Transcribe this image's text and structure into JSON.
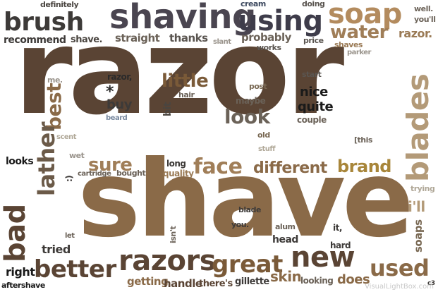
{
  "words": [
    {
      "id": "razor",
      "text": "razor",
      "color": "#5a4434"
    },
    {
      "id": "shave",
      "text": "shave",
      "color": "#8a6a48"
    },
    {
      "id": "brush",
      "text": "brush",
      "color": "#3d3a38"
    },
    {
      "id": "shaving",
      "text": "shaving",
      "color": "#4a4550"
    },
    {
      "id": "using",
      "text": "using",
      "color": "#3e3c4a"
    },
    {
      "id": "soap",
      "text": "soap",
      "color": "#b38b5e"
    },
    {
      "id": "water",
      "text": "water",
      "color": "#a07e58"
    },
    {
      "id": "razor-dot",
      "text": "razor.",
      "color": "#9a7a55"
    },
    {
      "id": "well",
      "text": "well.",
      "color": "#6b6258"
    },
    {
      "id": "youll",
      "text": "you'll",
      "color": "#6b6258"
    },
    {
      "id": "definitely",
      "text": "definitely",
      "color": "#4a4540"
    },
    {
      "id": "cream",
      "text": "cream",
      "color": "#3e4a60"
    },
    {
      "id": "doing",
      "text": "doing",
      "color": "#5a5550"
    },
    {
      "id": "recommend",
      "text": "recommend",
      "color": "#3d3a38"
    },
    {
      "id": "shave-dot",
      "text": "shave.",
      "color": "#4a4540"
    },
    {
      "id": "straight",
      "text": "straight",
      "color": "#6b6258"
    },
    {
      "id": "thanks",
      "text": "thanks",
      "color": "#5a5550"
    },
    {
      "id": "slant",
      "text": "slant",
      "color": "#9a948c"
    },
    {
      "id": "probably",
      "text": "probably",
      "color": "#6b6258"
    },
    {
      "id": "works",
      "text": "works",
      "color": "#5a5550"
    },
    {
      "id": "price",
      "text": "price",
      "color": "#5a5550"
    },
    {
      "id": "shaves",
      "text": "shaves",
      "color": "#9a7a55"
    },
    {
      "id": "parker",
      "text": "parker",
      "color": "#9a948c"
    },
    {
      "id": "me",
      "text": "me.",
      "color": "#9a948c"
    },
    {
      "id": "razor-comma",
      "text": "razor,",
      "color": "#2a2a2a"
    },
    {
      "id": "post",
      "text": "post",
      "color": "#7a6a55"
    },
    {
      "id": "start",
      "text": "start",
      "color": "#5a5550"
    },
    {
      "id": "little",
      "text": "little",
      "color": "#7a5a38"
    },
    {
      "id": "hair",
      "text": "hair",
      "color": "#6b6258"
    },
    {
      "id": "best",
      "text": "best",
      "color": "#8a6a48"
    },
    {
      "id": "asterisk",
      "text": "*",
      "color": "#2a2a2a"
    },
    {
      "id": "buy",
      "text": "buy",
      "color": "#3d3a38"
    },
    {
      "id": "beard",
      "text": "beard",
      "color": "#7a8aa0"
    },
    {
      "id": "bit",
      "text": "bit",
      "color": "#4a4540"
    },
    {
      "id": "maybe",
      "text": "maybe",
      "color": "#6b6258"
    },
    {
      "id": "look",
      "text": "look",
      "color": "#6b6258"
    },
    {
      "id": "nice",
      "text": "nice",
      "color": "#1a1a1a"
    },
    {
      "id": "quite",
      "text": "quite",
      "color": "#1a1a1a"
    },
    {
      "id": "couple",
      "text": "couple",
      "color": "#6b6258"
    },
    {
      "id": "blades",
      "text": "blades",
      "color": "#b39a78"
    },
    {
      "id": "scent",
      "text": "scent",
      "color": "#b0a898"
    },
    {
      "id": "old",
      "text": "old",
      "color": "#7a6a55"
    },
    {
      "id": "this",
      "text": "[this",
      "color": "#6b6258"
    },
    {
      "id": "stuff",
      "text": "stuff",
      "color": "#b0a898"
    },
    {
      "id": "lather",
      "text": "lather",
      "color": "#6b5a48"
    },
    {
      "id": "wet",
      "text": "wet",
      "color": "#9a948c"
    },
    {
      "id": "sure",
      "text": "sure",
      "color": "#a07e58"
    },
    {
      "id": "long",
      "text": "long",
      "color": "#3d3a38"
    },
    {
      "id": "quality",
      "text": "quality",
      "color": "#9a7a55"
    },
    {
      "id": "face",
      "text": "face",
      "color": "#a07e58"
    },
    {
      "id": "different",
      "text": "different",
      "color": "#8a6a48"
    },
    {
      "id": "brand",
      "text": "brand",
      "color": "#a8863a"
    },
    {
      "id": "looks",
      "text": "looks",
      "color": "#1a1a1a"
    },
    {
      "id": "smiley",
      "text": ":)",
      "color": "#3d3a38"
    },
    {
      "id": "cartridge",
      "text": "cartridge",
      "color": "#6b6258"
    },
    {
      "id": "bought",
      "text": "bought",
      "color": "#6b6258"
    },
    {
      "id": "trying",
      "text": "trying",
      "color": "#b0a898"
    },
    {
      "id": "ill",
      "text": "i'll",
      "color": "#b39a78"
    },
    {
      "id": "blade",
      "text": "blade",
      "color": "#5a4434"
    },
    {
      "id": "bad",
      "text": "bad",
      "color": "#3d3a38"
    },
    {
      "id": "you",
      "text": "you.",
      "color": "#3d3a38"
    },
    {
      "id": "isnt",
      "text": "isn't",
      "color": "#6b6258"
    },
    {
      "id": "let",
      "text": "let",
      "color": "#6b6258"
    },
    {
      "id": "alum",
      "text": "alum",
      "color": "#6b6258"
    },
    {
      "id": "it",
      "text": "it,",
      "color": "#3d3a38"
    },
    {
      "id": "soaps",
      "text": "soaps",
      "color": "#7a6a55"
    },
    {
      "id": "tried",
      "text": "tried",
      "color": "#3d3a38"
    },
    {
      "id": "head",
      "text": "head",
      "color": "#3d3a38"
    },
    {
      "id": "hard",
      "text": "hard",
      "color": "#3d3a38"
    },
    {
      "id": "better",
      "text": "better",
      "color": "#5a4434"
    },
    {
      "id": "razors",
      "text": "razors",
      "color": "#5a4434"
    },
    {
      "id": "great",
      "text": "great",
      "color": "#7a5a38"
    },
    {
      "id": "new",
      "text": "new",
      "color": "#5a4434"
    },
    {
      "id": "used",
      "text": "used",
      "color": "#8a6a48"
    },
    {
      "id": "skin",
      "text": "skin",
      "color": "#8a6a48"
    },
    {
      "id": "right",
      "text": "right",
      "color": "#1a1a1a"
    },
    {
      "id": "aftershave",
      "text": "aftershave",
      "color": "#1a1a1a"
    },
    {
      "id": "getting",
      "text": "getting",
      "color": "#8a6a48"
    },
    {
      "id": "handle",
      "text": "handle",
      "color": "#5a4434"
    },
    {
      "id": "theres",
      "text": "there's",
      "color": "#5a4434"
    },
    {
      "id": "gillette",
      "text": "gillette",
      "color": "#3d3a38"
    },
    {
      "id": "looking",
      "text": "looking",
      "color": "#6b6258"
    },
    {
      "id": "does",
      "text": "does",
      "color": "#8a6a48"
    },
    {
      "id": "c3",
      "text": "c3",
      "color": "#3d3a38"
    }
  ],
  "watermark": {
    "text": "VisualLightBox.com"
  }
}
